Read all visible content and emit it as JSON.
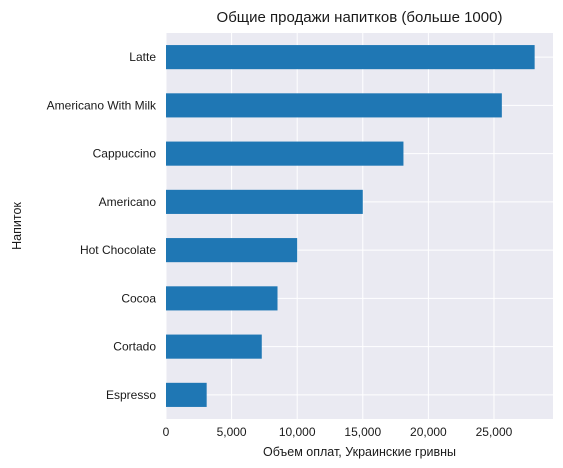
{
  "chart_data": {
    "type": "bar",
    "orientation": "horizontal",
    "title": "Общие продажи напитков (больше 1000)",
    "xlabel": "Объем оплат, Украинские гривны",
    "ylabel": "Напиток",
    "categories": [
      "Latte",
      "Americano With Milk",
      "Cappuccino",
      "Americano",
      "Hot Chocolate",
      "Cocoa",
      "Cortado",
      "Espresso"
    ],
    "values": [
      28100,
      25600,
      18100,
      15000,
      10000,
      8500,
      7300,
      3100
    ],
    "xlim": [
      0,
      29500
    ],
    "xticks": [
      0,
      5000,
      10000,
      15000,
      20000,
      25000
    ],
    "xtick_labels": [
      "0",
      "5,000",
      "10,000",
      "15,000",
      "20,000",
      "25,000"
    ],
    "grid": true,
    "colors": {
      "bar": "#1f77b4",
      "background": "#eaeaf2",
      "grid": "#ffffff"
    }
  }
}
